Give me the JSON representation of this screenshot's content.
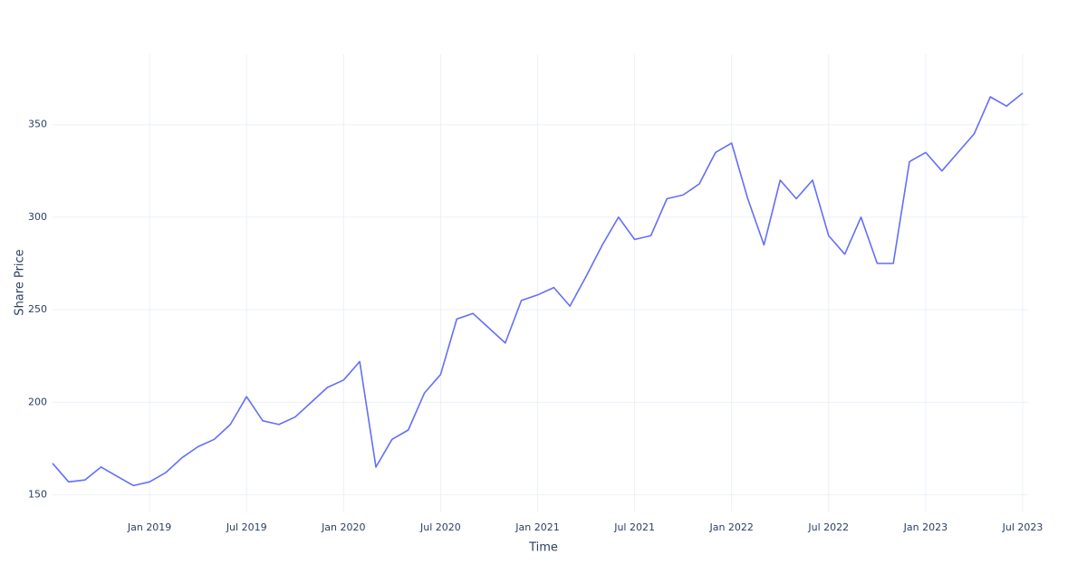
{
  "chart_data": {
    "type": "line",
    "x_label": "Time",
    "y_label": "Share Price",
    "x": [
      "2018-07",
      "2018-08",
      "2018-09",
      "2018-10",
      "2018-11",
      "2018-12",
      "2019-01",
      "2019-02",
      "2019-03",
      "2019-04",
      "2019-05",
      "2019-06",
      "2019-07",
      "2019-08",
      "2019-09",
      "2019-10",
      "2019-11",
      "2019-12",
      "2020-01",
      "2020-02",
      "2020-03",
      "2020-04",
      "2020-05",
      "2020-06",
      "2020-07",
      "2020-08",
      "2020-09",
      "2020-10",
      "2020-11",
      "2020-12",
      "2021-01",
      "2021-02",
      "2021-03",
      "2021-04",
      "2021-05",
      "2021-06",
      "2021-07",
      "2021-08",
      "2021-09",
      "2021-10",
      "2021-11",
      "2021-12",
      "2022-01",
      "2022-02",
      "2022-03",
      "2022-04",
      "2022-05",
      "2022-06",
      "2022-07",
      "2022-08",
      "2022-09",
      "2022-10",
      "2022-11",
      "2022-12",
      "2023-01",
      "2023-02",
      "2023-03",
      "2023-04",
      "2023-05",
      "2023-06",
      "2023-07"
    ],
    "values": [
      167,
      157,
      158,
      165,
      160,
      155,
      157,
      162,
      170,
      176,
      180,
      188,
      203,
      190,
      188,
      192,
      200,
      208,
      212,
      222,
      165,
      180,
      185,
      205,
      215,
      245,
      248,
      240,
      232,
      255,
      258,
      262,
      252,
      268,
      285,
      300,
      288,
      290,
      310,
      312,
      318,
      335,
      340,
      310,
      285,
      320,
      310,
      320,
      290,
      280,
      300,
      275,
      275,
      330,
      335,
      325,
      335,
      345,
      365,
      360,
      367
    ],
    "color": "#636efa",
    "xlim": [
      "2018-07",
      "2023-07"
    ],
    "xticks": [
      {
        "value": "2019-01",
        "label": "Jan 2019"
      },
      {
        "value": "2019-07",
        "label": "Jul 2019"
      },
      {
        "value": "2020-01",
        "label": "Jan 2020"
      },
      {
        "value": "2020-07",
        "label": "Jul 2020"
      },
      {
        "value": "2021-01",
        "label": "Jan 2021"
      },
      {
        "value": "2021-07",
        "label": "Jul 2021"
      },
      {
        "value": "2022-01",
        "label": "Jan 2022"
      },
      {
        "value": "2022-07",
        "label": "Jul 2022"
      },
      {
        "value": "2023-01",
        "label": "Jan 2023"
      },
      {
        "value": "2023-07",
        "label": "Jul 2023"
      }
    ],
    "ylim": [
      141,
      388
    ],
    "yticks": [
      150,
      200,
      250,
      300,
      350
    ],
    "grid": true
  }
}
